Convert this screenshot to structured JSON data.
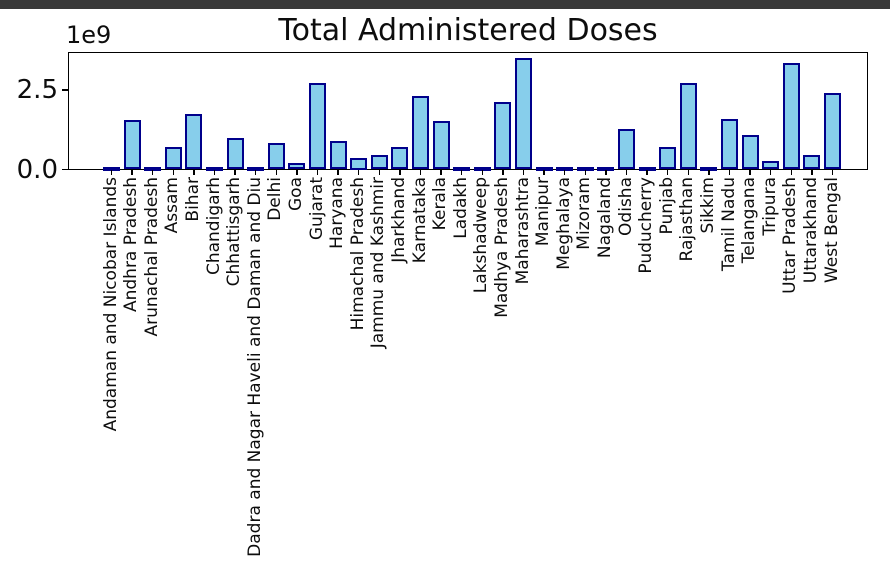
{
  "window": {
    "top_bar_color": "#393939"
  },
  "chart_data": {
    "type": "bar",
    "title": "Total Administered Doses",
    "xlabel": "",
    "ylabel": "",
    "offset_label": "1e9",
    "unit_multiplier": 1000000000,
    "grid": false,
    "legend": null,
    "ylim": [
      0,
      3.7
    ],
    "yticks": [
      "0.0",
      "2.5"
    ],
    "ytick_values": [
      0,
      2.5
    ],
    "bar_fill_color": "#87ceeb",
    "bar_edge_color": "#00008b",
    "categories": [
      "Andaman and Nicobar Islands",
      "Andhra Pradesh",
      "Arunachal Pradesh",
      "Assam",
      "Bihar",
      "Chandigarh",
      "Chhattisgarh",
      "Dadra and Nagar Haveli and Daman and Diu",
      "Delhi",
      "Goa",
      "Gujarat",
      "Haryana",
      "Himachal Pradesh",
      "Jammu and Kashmir",
      "Jharkhand",
      "Karnataka",
      "Kerala",
      "Ladakh",
      "Lakshadweep",
      "Madhya Pradesh",
      "Maharashtra",
      "Manipur",
      "Meghalaya",
      "Mizoram",
      "Nagaland",
      "Odisha",
      "Puducherry",
      "Punjab",
      "Rajasthan",
      "Sikkim",
      "Tamil Nadu",
      "Telangana",
      "Tripura",
      "Uttar Pradesh",
      "Uttarakhand",
      "West Bengal"
    ],
    "values_billions": [
      0.07,
      1.55,
      0.08,
      0.72,
      1.74,
      0.07,
      1.0,
      0.07,
      0.84,
      0.21,
      2.73,
      0.89,
      0.37,
      0.47,
      0.7,
      2.32,
      1.52,
      0.05,
      0.04,
      2.11,
      3.52,
      0.08,
      0.08,
      0.05,
      0.05,
      1.29,
      0.06,
      0.7,
      2.73,
      0.08,
      1.58,
      1.1,
      0.28,
      3.35,
      0.45,
      2.41
    ]
  }
}
